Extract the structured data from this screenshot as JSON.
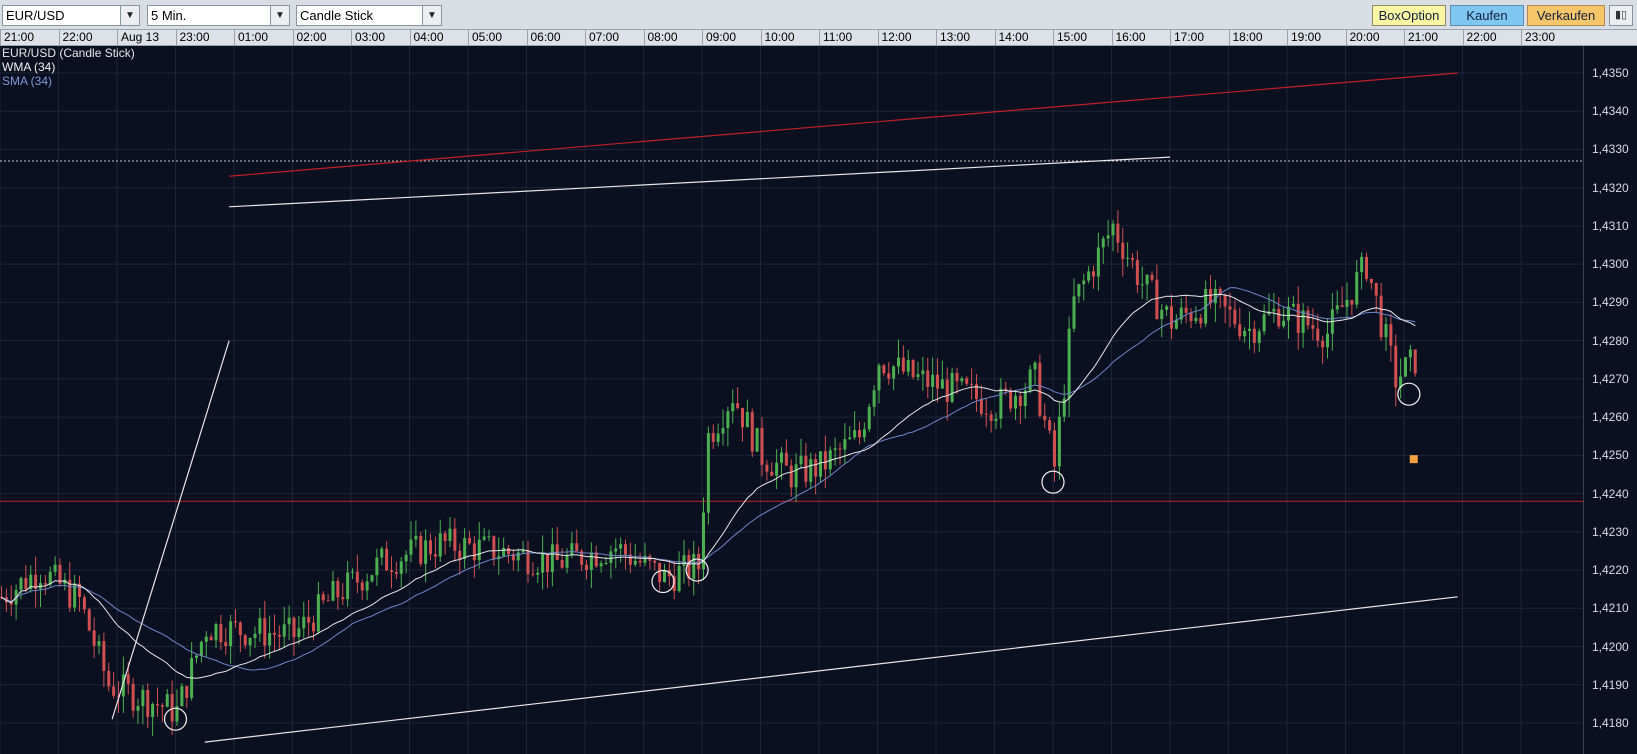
{
  "toolbar": {
    "symbol": "EUR/USD",
    "interval": "5 Min.",
    "chart_type": "Candle Stick",
    "box_option": "BoxOption",
    "buy": "Kaufen",
    "sell": "Verkaufen",
    "combo_arrow": "▼",
    "panel_icon": "▮▯"
  },
  "legend": {
    "main": "EUR/USD (Candle Stick)",
    "wma": "WMA (34)",
    "sma": "SMA (34)"
  },
  "colors": {
    "background": "#0a1020",
    "grid": "#1c2538",
    "bull": "#4caf50",
    "bear": "#d05050",
    "wma": "#e8e8e8",
    "sma": "#6f86c8",
    "resistance": "#c0202a",
    "support": "#c0202a",
    "trendline": "#e6e6e6",
    "marker": "#f5a040"
  },
  "time_labels": [
    "21:00",
    "22:00",
    "Aug 13",
    "23:00",
    "01:00",
    "02:00",
    "03:00",
    "04:00",
    "05:00",
    "06:00",
    "07:00",
    "08:00",
    "09:00",
    "10:00",
    "11:00",
    "12:00",
    "13:00",
    "14:00",
    "15:00",
    "16:00",
    "17:00",
    "18:00",
    "19:00",
    "20:00",
    "21:00",
    "22:00",
    "23:00"
  ],
  "price_labels": [
    "1,4350",
    "1,4340",
    "1,4330",
    "1,4320",
    "1,4310",
    "1,4300",
    "1,4290",
    "1,4280",
    "1,4270",
    "1,4260",
    "1,4250",
    "1,4240",
    "1,4230",
    "1,4220",
    "1,4210",
    "1,4200",
    "1,4190",
    "1,4180"
  ],
  "chart_data": {
    "type": "candlestick",
    "symbol": "EUR/USD",
    "interval": "5 Min.",
    "y_range": [
      1.4175,
      1.4355
    ],
    "x_range_hours": [
      "21:00",
      "23:00"
    ],
    "indicators": [
      "WMA (34)",
      "SMA (34)"
    ],
    "horizontal_lines": [
      {
        "price": 1.4327,
        "style": "dotted",
        "color": "#c8c8c8"
      },
      {
        "price": 1.4238,
        "style": "solid",
        "color": "#c0202a"
      }
    ],
    "trendlines": [
      {
        "from": [
          "22:55",
          1.4181
        ],
        "to": [
          "23:55",
          1.428
        ],
        "color": "#e6e6e6"
      },
      {
        "from": [
          "20:55",
          1.4213
        ],
        "to": [
          "23:30",
          1.4175
        ],
        "color": "#e6e6e6"
      },
      {
        "from": [
          "20:55",
          1.435
        ],
        "to": [
          "23:55",
          1.4323
        ],
        "color": "#c0202a"
      },
      {
        "from": [
          "16:00",
          1.4328
        ],
        "to": [
          "23:55",
          1.4315
        ],
        "color": "#e6e6e6"
      }
    ],
    "circled_points": [
      {
        "time": "23:00",
        "price": 1.4181
      },
      {
        "time": "07:20",
        "price": 1.4217
      },
      {
        "time": "07:55",
        "price": 1.422
      },
      {
        "time": "14:00",
        "price": 1.4243
      },
      {
        "time": "20:05",
        "price": 1.4266
      }
    ],
    "marker": {
      "time": "20:10",
      "price": 1.4249
    }
  }
}
